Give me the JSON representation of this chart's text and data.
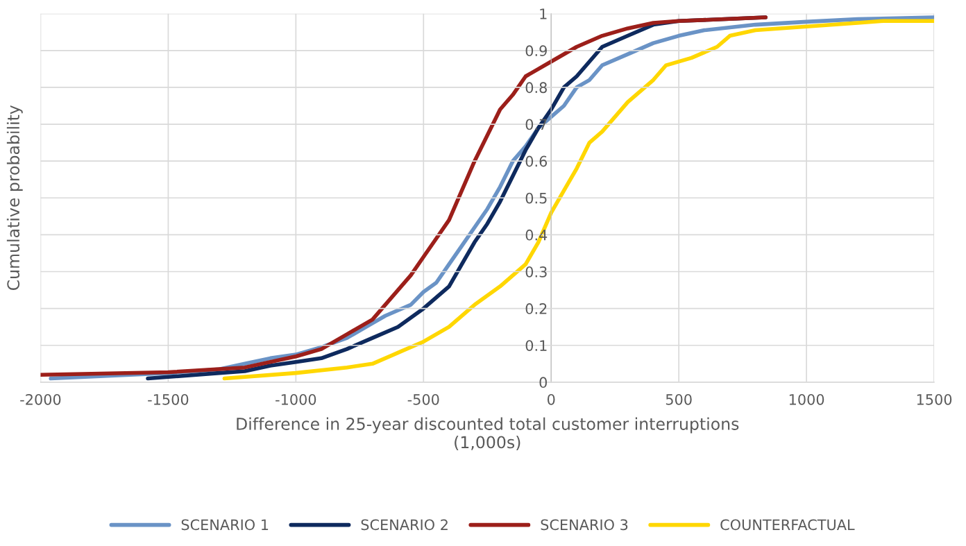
{
  "chart_data": {
    "type": "line",
    "xlabel": "Difference in 25-year discounted total customer interruptions\n(1,000s)",
    "ylabel": "Cumulative probability",
    "xlim": [
      -2000,
      1500
    ],
    "xticks": [
      -2000,
      -1500,
      -1000,
      -500,
      0,
      500,
      1000,
      1500
    ],
    "ylim": [
      0,
      1
    ],
    "yticks": [
      0,
      0.1,
      0.2,
      0.3,
      0.4,
      0.5,
      0.6,
      0.7,
      0.8,
      0.9,
      1
    ],
    "grid": true,
    "legend": "bottom",
    "line_style": "solid",
    "series": [
      {
        "name": "SCENARIO 1",
        "color": "#6a93c6",
        "x": [
          -1960,
          -1500,
          -1300,
          -1200,
          -1100,
          -1000,
          -900,
          -800,
          -700,
          -650,
          -600,
          -550,
          -500,
          -450,
          -400,
          -350,
          -300,
          -250,
          -200,
          -150,
          -100,
          -50,
          0,
          50,
          100,
          150,
          200,
          300,
          400,
          500,
          600,
          800,
          1000,
          1200,
          1500
        ],
        "values": [
          0.01,
          0.025,
          0.035,
          0.05,
          0.065,
          0.075,
          0.095,
          0.12,
          0.16,
          0.18,
          0.195,
          0.21,
          0.245,
          0.27,
          0.32,
          0.37,
          0.42,
          0.47,
          0.53,
          0.6,
          0.64,
          0.69,
          0.72,
          0.75,
          0.8,
          0.82,
          0.86,
          0.89,
          0.92,
          0.94,
          0.955,
          0.97,
          0.978,
          0.985,
          0.99
        ]
      },
      {
        "name": "SCENARIO 2",
        "color": "#0e2a5e",
        "x": [
          -1580,
          -1300,
          -1200,
          -1100,
          -1000,
          -900,
          -800,
          -700,
          -600,
          -500,
          -400,
          -350,
          -300,
          -250,
          -200,
          -150,
          -100,
          -50,
          0,
          50,
          100,
          150,
          200,
          300,
          400,
          500,
          840
        ],
        "values": [
          0.01,
          0.025,
          0.03,
          0.045,
          0.055,
          0.065,
          0.09,
          0.12,
          0.15,
          0.2,
          0.26,
          0.32,
          0.38,
          0.43,
          0.49,
          0.56,
          0.63,
          0.69,
          0.74,
          0.8,
          0.83,
          0.87,
          0.91,
          0.94,
          0.97,
          0.98,
          0.99
        ]
      },
      {
        "name": "SCENARIO 3",
        "color": "#9c1f1a",
        "x": [
          -2000,
          -1500,
          -1200,
          -1000,
          -900,
          -800,
          -700,
          -650,
          -600,
          -550,
          -500,
          -450,
          -400,
          -350,
          -300,
          -250,
          -200,
          -150,
          -100,
          -50,
          0,
          100,
          200,
          300,
          400,
          500,
          840
        ],
        "values": [
          0.02,
          0.027,
          0.04,
          0.07,
          0.09,
          0.13,
          0.17,
          0.21,
          0.25,
          0.29,
          0.34,
          0.39,
          0.44,
          0.52,
          0.6,
          0.67,
          0.74,
          0.78,
          0.83,
          0.85,
          0.87,
          0.91,
          0.94,
          0.96,
          0.975,
          0.98,
          0.99
        ]
      },
      {
        "name": "COUNTERFACTUAL",
        "color": "#ffd700",
        "x": [
          -1280,
          -1000,
          -800,
          -700,
          -600,
          -500,
          -400,
          -300,
          -200,
          -100,
          -50,
          0,
          50,
          100,
          150,
          200,
          250,
          300,
          400,
          450,
          550,
          650,
          700,
          800,
          1000,
          1200,
          1300,
          1500
        ],
        "values": [
          0.01,
          0.025,
          0.04,
          0.05,
          0.08,
          0.11,
          0.15,
          0.21,
          0.26,
          0.32,
          0.38,
          0.46,
          0.52,
          0.58,
          0.65,
          0.68,
          0.72,
          0.76,
          0.82,
          0.86,
          0.88,
          0.91,
          0.94,
          0.955,
          0.965,
          0.975,
          0.98,
          0.98
        ]
      }
    ]
  }
}
